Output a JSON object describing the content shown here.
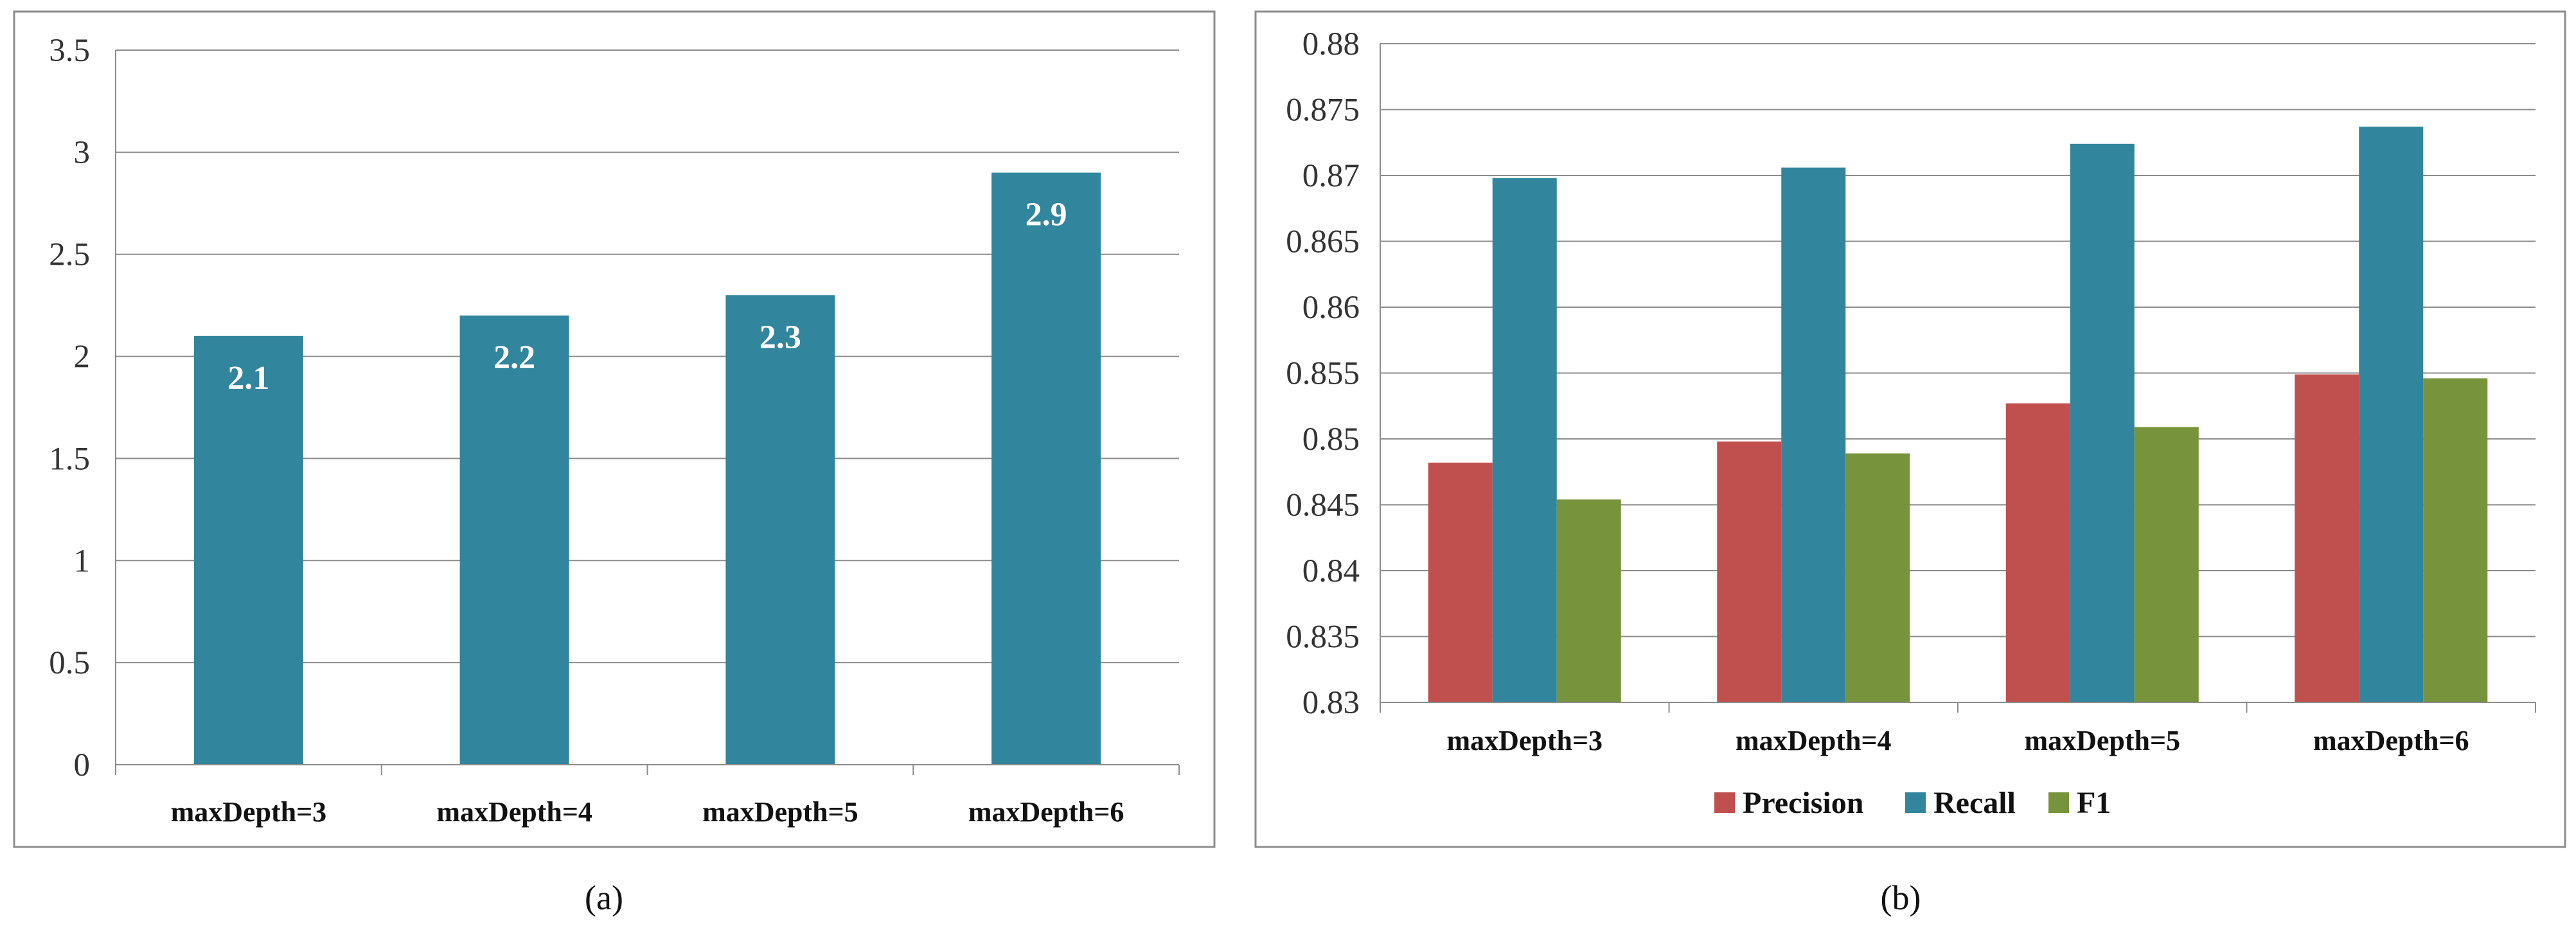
{
  "chart_data": [
    {
      "type": "bar",
      "panel_label": "(a)",
      "categories": [
        "maxDepth=3",
        "maxDepth=4",
        "maxDepth=5",
        "maxDepth=6"
      ],
      "values": [
        2.1,
        2.2,
        2.3,
        2.9
      ],
      "data_labels": [
        "2.1",
        "2.2",
        "2.3",
        "2.9"
      ],
      "ylim": [
        0,
        3.5
      ],
      "yticks": [
        "0",
        "0.5",
        "1",
        "1.5",
        "2",
        "2.5",
        "3",
        "3.5"
      ],
      "grid": true,
      "colors": [
        "#31859C"
      ]
    },
    {
      "type": "bar",
      "panel_label": "(b)",
      "categories": [
        "maxDepth=3",
        "maxDepth=4",
        "maxDepth=5",
        "maxDepth=6"
      ],
      "series": [
        {
          "name": "Precision",
          "values": [
            0.8482,
            0.8498,
            0.8527,
            0.8549
          ]
        },
        {
          "name": "Recall",
          "values": [
            0.8698,
            0.8706,
            0.8724,
            0.8737
          ]
        },
        {
          "name": "F1",
          "values": [
            0.8454,
            0.8489,
            0.8509,
            0.8546
          ]
        }
      ],
      "ylim": [
        0.83,
        0.88
      ],
      "yticks": [
        "0.83",
        "0.835",
        "0.84",
        "0.845",
        "0.85",
        "0.855",
        "0.86",
        "0.865",
        "0.87",
        "0.875",
        "0.88"
      ],
      "grid": true,
      "legend_position": "bottom",
      "colors": [
        "#C0504D",
        "#31859C",
        "#77933C"
      ]
    }
  ]
}
